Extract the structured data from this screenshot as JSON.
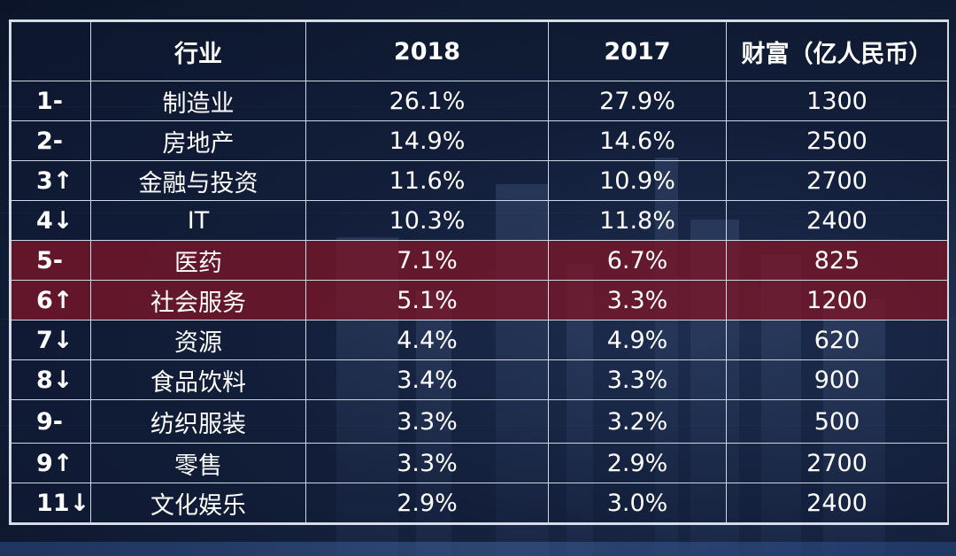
{
  "header": {
    "rank": "",
    "industry": "行业",
    "y2018": "2018",
    "y2017": "2017",
    "wealth": "财富（亿人民币）"
  },
  "highlight_color": "#6e1628",
  "rows": [
    {
      "rank": "1-",
      "industry": "制造业",
      "y2018": "26.1%",
      "y2017": "27.9%",
      "wealth": "1300"
    },
    {
      "rank": "2-",
      "industry": "房地产",
      "y2018": "14.9%",
      "y2017": "14.6%",
      "wealth": "2500"
    },
    {
      "rank": "3↑",
      "industry": "金融与投资",
      "y2018": "11.6%",
      "y2017": "10.9%",
      "wealth": "2700"
    },
    {
      "rank": "4↓",
      "industry": "IT",
      "y2018": "10.3%",
      "y2017": "11.8%",
      "wealth": "2400"
    },
    {
      "rank": "5-",
      "industry": "医药",
      "y2018": "7.1%",
      "y2017": "6.7%",
      "wealth": "825"
    },
    {
      "rank": "6↑",
      "industry": "社会服务",
      "y2018": "5.1%",
      "y2017": "3.3%",
      "wealth": "1200"
    },
    {
      "rank": "7↓",
      "industry": "资源",
      "y2018": "4.4%",
      "y2017": "4.9%",
      "wealth": "620"
    },
    {
      "rank": "8↓",
      "industry": "食品饮料",
      "y2018": "3.4%",
      "y2017": "3.3%",
      "wealth": "900"
    },
    {
      "rank": "9-",
      "industry": "纺织服装",
      "y2018": "3.3%",
      "y2017": "3.2%",
      "wealth": "500"
    },
    {
      "rank": "9↑",
      "industry": "零售",
      "y2018": "3.3%",
      "y2017": "2.9%",
      "wealth": "2700"
    },
    {
      "rank": "11↓",
      "industry": "文化娱乐",
      "y2018": "2.9%",
      "y2017": "3.0%",
      "wealth": "2400"
    }
  ]
}
